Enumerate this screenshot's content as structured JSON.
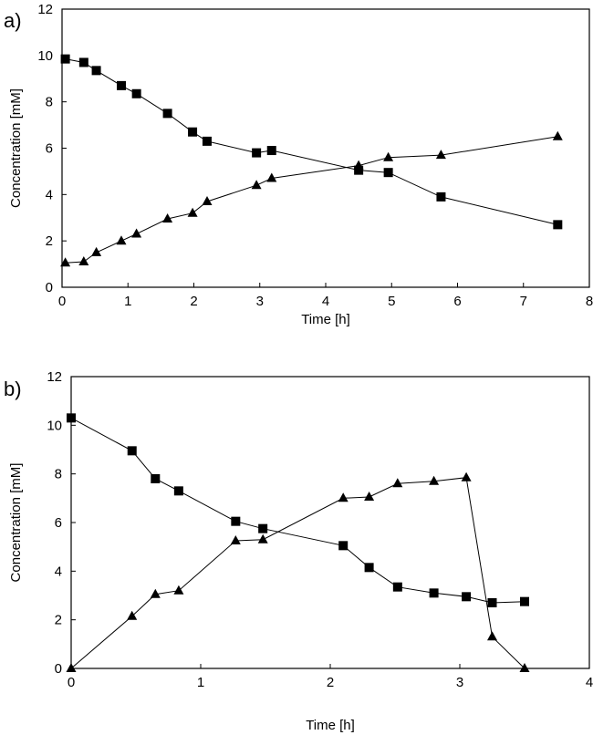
{
  "chart_data": [
    {
      "panel_label": "a)",
      "type": "line",
      "xlabel": "Time [h]",
      "ylabel": "Concentration [mM]",
      "xlim": [
        0,
        8
      ],
      "ylim": [
        0,
        12
      ],
      "xticks": [
        0,
        1,
        2,
        3,
        4,
        5,
        6,
        7,
        8
      ],
      "yticks": [
        0,
        2,
        4,
        6,
        8,
        10,
        12
      ],
      "grid": false,
      "series": [
        {
          "marker": "square",
          "x": [
            0.05,
            0.33,
            0.52,
            0.9,
            1.13,
            1.6,
            1.98,
            2.2,
            2.95,
            3.18,
            4.5,
            4.95,
            5.75,
            7.52
          ],
          "y": [
            9.85,
            9.7,
            9.35,
            8.7,
            8.35,
            7.5,
            6.7,
            6.3,
            5.8,
            5.9,
            5.05,
            4.95,
            3.9,
            2.7
          ]
        },
        {
          "marker": "triangle",
          "x": [
            0.05,
            0.33,
            0.52,
            0.9,
            1.13,
            1.6,
            1.98,
            2.2,
            2.95,
            3.18,
            4.5,
            4.95,
            5.75,
            7.52
          ],
          "y": [
            1.05,
            1.1,
            1.5,
            2.0,
            2.3,
            2.95,
            3.2,
            3.7,
            4.4,
            4.7,
            5.25,
            5.6,
            5.7,
            6.5
          ]
        }
      ]
    },
    {
      "panel_label": "b)",
      "type": "line",
      "xlabel": "Time [h]",
      "ylabel": "Concentration [mM]",
      "xlim": [
        0,
        4
      ],
      "ylim": [
        0,
        12
      ],
      "xticks": [
        0,
        1,
        2,
        3,
        4
      ],
      "yticks": [
        0,
        2,
        4,
        6,
        8,
        10,
        12
      ],
      "grid": false,
      "series": [
        {
          "marker": "square",
          "x": [
            0.0,
            0.47,
            0.65,
            0.83,
            1.27,
            1.48,
            2.1,
            2.3,
            2.52,
            2.8,
            3.05,
            3.25,
            3.5
          ],
          "y": [
            10.3,
            8.95,
            7.8,
            7.3,
            6.05,
            5.75,
            5.05,
            4.15,
            3.35,
            3.1,
            2.95,
            2.7,
            2.75
          ]
        },
        {
          "marker": "triangle",
          "x": [
            0.0,
            0.47,
            0.65,
            0.83,
            1.27,
            1.48,
            2.1,
            2.3,
            2.52,
            2.8,
            3.05,
            3.25,
            3.5
          ],
          "y": [
            0.0,
            2.15,
            3.05,
            3.2,
            5.25,
            5.3,
            7.0,
            7.05,
            7.6,
            7.7,
            7.85,
            1.3,
            0.0
          ]
        }
      ]
    }
  ]
}
